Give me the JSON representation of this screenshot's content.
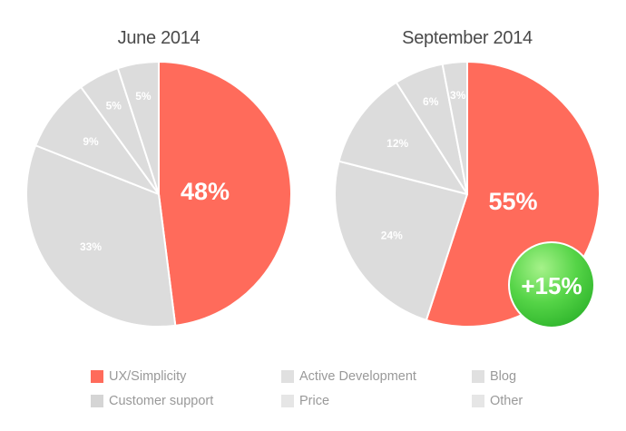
{
  "chart_data": [
    {
      "type": "pie",
      "title": "June 2014",
      "slices": [
        {
          "name": "UX/Simplicity",
          "value": 48,
          "label": "48%",
          "color": "#ff6b5b"
        },
        {
          "name": "Customer support",
          "value": 33,
          "label": "33%",
          "color": "#dcdcdc"
        },
        {
          "name": "Active Development",
          "value": 9,
          "label": "9%",
          "color": "#dcdcdc"
        },
        {
          "name": "Price",
          "value": 5,
          "label": "5%",
          "color": "#dcdcdc"
        },
        {
          "name": "Blog",
          "value": 5,
          "label": "5%",
          "color": "#dcdcdc"
        }
      ]
    },
    {
      "type": "pie",
      "title": "September 2014",
      "slices": [
        {
          "name": "UX/Simplicity",
          "value": 55,
          "label": "55%",
          "color": "#ff6b5b"
        },
        {
          "name": "Customer support",
          "value": 24,
          "label": "24%",
          "color": "#dcdcdc"
        },
        {
          "name": "Active Development",
          "value": 12,
          "label": "12%",
          "color": "#dcdcdc"
        },
        {
          "name": "Price",
          "value": 6,
          "label": "6%",
          "color": "#dcdcdc"
        },
        {
          "name": "Blog",
          "value": 3,
          "label": "3%",
          "color": "#dcdcdc"
        }
      ],
      "badge": {
        "text": "+15%",
        "color": "#4cd140"
      }
    }
  ],
  "legend": {
    "items": [
      {
        "label": "UX/Simplicity",
        "color": "#ff6b5b"
      },
      {
        "label": "Active Development",
        "color": "#e0e0e0"
      },
      {
        "label": "Blog",
        "color": "#e0e0e0"
      },
      {
        "label": "Customer support",
        "color": "#d5d5d5"
      },
      {
        "label": "Price",
        "color": "#e6e6e6"
      },
      {
        "label": "Other",
        "color": "#e6e6e6"
      }
    ]
  }
}
